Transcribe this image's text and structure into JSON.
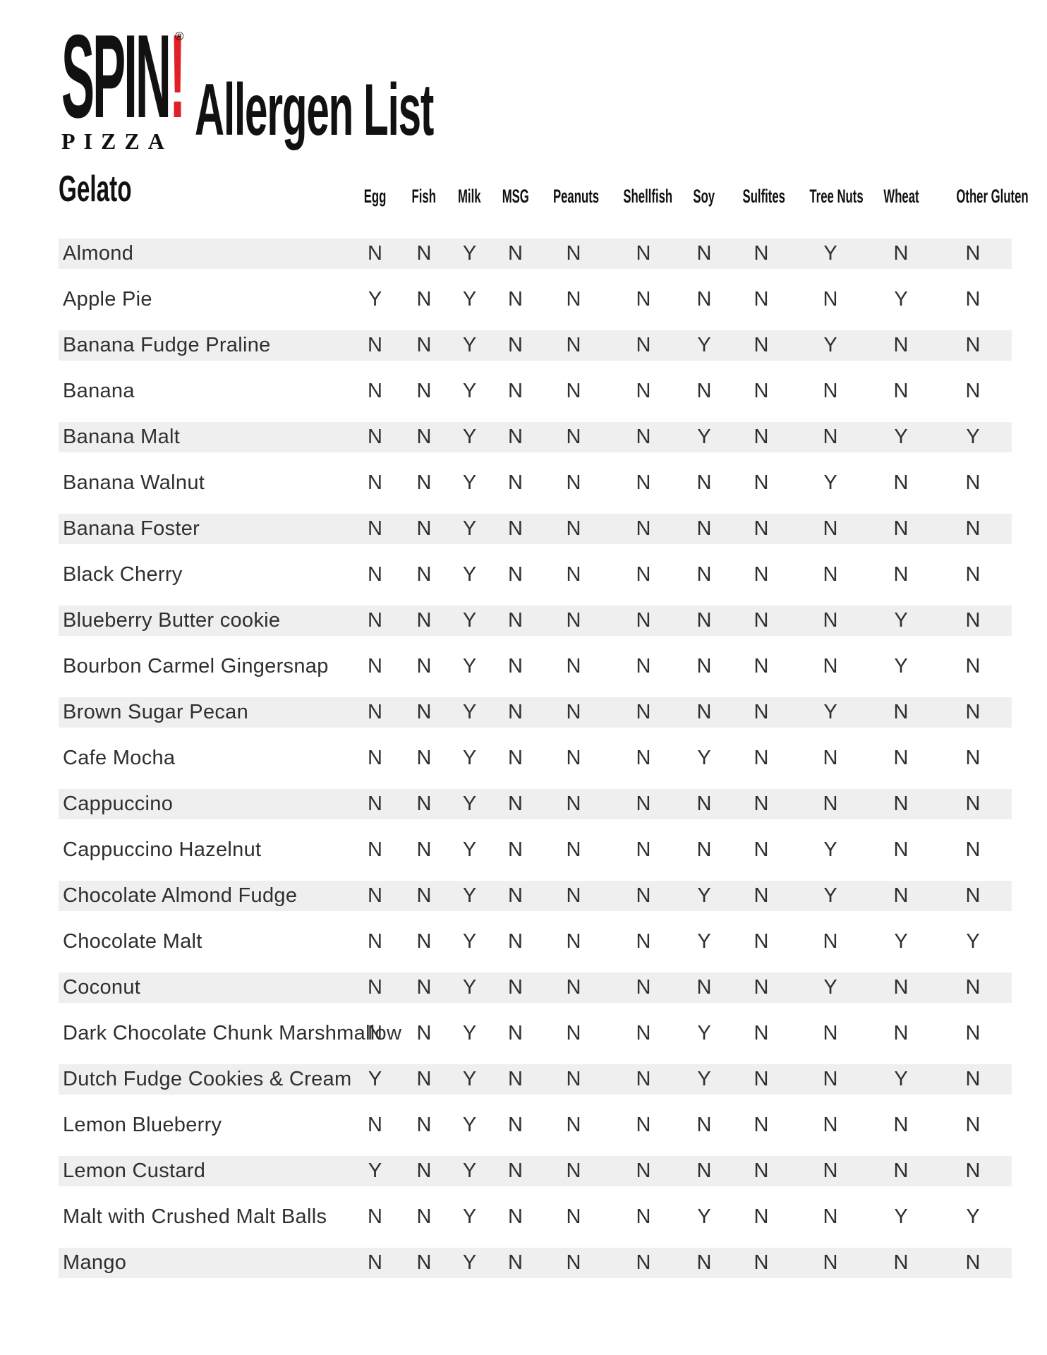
{
  "logo": {
    "brand": "SPIN",
    "exclamation": "!",
    "registered": "®",
    "sub_brand": "PIZZA"
  },
  "title": "Allergen List",
  "section": "Gelato",
  "colors": {
    "accent_red": "#e11f26",
    "row_stripe": "#efefef",
    "ink": "#111111",
    "body_text": "#2f2f2f"
  },
  "table": {
    "columns": [
      "Egg",
      "Fish",
      "Milk",
      "MSG",
      "Peanuts",
      "Shellfish",
      "Soy",
      "Sulfites",
      "Tree Nuts",
      "Wheat",
      "Other Gluten"
    ],
    "rows": [
      {
        "flavor": "Almond",
        "values": [
          "N",
          "N",
          "Y",
          "N",
          "N",
          "N",
          "N",
          "N",
          "Y",
          "N",
          "N"
        ]
      },
      {
        "flavor": "Apple Pie",
        "values": [
          "Y",
          "N",
          "Y",
          "N",
          "N",
          "N",
          "N",
          "N",
          "N",
          "Y",
          "N"
        ]
      },
      {
        "flavor": "Banana Fudge Praline",
        "values": [
          "N",
          "N",
          "Y",
          "N",
          "N",
          "N",
          "Y",
          "N",
          "Y",
          "N",
          "N"
        ]
      },
      {
        "flavor": "Banana",
        "values": [
          "N",
          "N",
          "Y",
          "N",
          "N",
          "N",
          "N",
          "N",
          "N",
          "N",
          "N"
        ]
      },
      {
        "flavor": "Banana Malt",
        "values": [
          "N",
          "N",
          "Y",
          "N",
          "N",
          "N",
          "Y",
          "N",
          "N",
          "Y",
          "Y"
        ]
      },
      {
        "flavor": "Banana Walnut",
        "values": [
          "N",
          "N",
          "Y",
          "N",
          "N",
          "N",
          "N",
          "N",
          "Y",
          "N",
          "N"
        ]
      },
      {
        "flavor": "Banana Foster",
        "values": [
          "N",
          "N",
          "Y",
          "N",
          "N",
          "N",
          "N",
          "N",
          "N",
          "N",
          "N"
        ]
      },
      {
        "flavor": "Black Cherry",
        "values": [
          "N",
          "N",
          "Y",
          "N",
          "N",
          "N",
          "N",
          "N",
          "N",
          "N",
          "N"
        ]
      },
      {
        "flavor": "Blueberry Butter cookie",
        "values": [
          "N",
          "N",
          "Y",
          "N",
          "N",
          "N",
          "N",
          "N",
          "N",
          "Y",
          "N"
        ]
      },
      {
        "flavor": "Bourbon Carmel Gingersnap",
        "values": [
          "N",
          "N",
          "Y",
          "N",
          "N",
          "N",
          "N",
          "N",
          "N",
          "Y",
          "N"
        ]
      },
      {
        "flavor": "Brown Sugar Pecan",
        "values": [
          "N",
          "N",
          "Y",
          "N",
          "N",
          "N",
          "N",
          "N",
          "Y",
          "N",
          "N"
        ]
      },
      {
        "flavor": "Cafe Mocha",
        "values": [
          "N",
          "N",
          "Y",
          "N",
          "N",
          "N",
          "Y",
          "N",
          "N",
          "N",
          "N"
        ]
      },
      {
        "flavor": "Cappuccino",
        "values": [
          "N",
          "N",
          "Y",
          "N",
          "N",
          "N",
          "N",
          "N",
          "N",
          "N",
          "N"
        ]
      },
      {
        "flavor": "Cappuccino Hazelnut",
        "values": [
          "N",
          "N",
          "Y",
          "N",
          "N",
          "N",
          "N",
          "N",
          "Y",
          "N",
          "N"
        ]
      },
      {
        "flavor": "Chocolate Almond Fudge",
        "values": [
          "N",
          "N",
          "Y",
          "N",
          "N",
          "N",
          "Y",
          "N",
          "Y",
          "N",
          "N"
        ]
      },
      {
        "flavor": "Chocolate Malt",
        "values": [
          "N",
          "N",
          "Y",
          "N",
          "N",
          "N",
          "Y",
          "N",
          "N",
          "Y",
          "Y"
        ]
      },
      {
        "flavor": "Coconut",
        "values": [
          "N",
          "N",
          "Y",
          "N",
          "N",
          "N",
          "N",
          "N",
          "Y",
          "N",
          "N"
        ]
      },
      {
        "flavor": "Dark Chocolate Chunk Marshmallow",
        "values": [
          "N",
          "N",
          "Y",
          "N",
          "N",
          "N",
          "Y",
          "N",
          "N",
          "N",
          "N"
        ]
      },
      {
        "flavor": "Dutch Fudge Cookies & Cream",
        "values": [
          "Y",
          "N",
          "Y",
          "N",
          "N",
          "N",
          "Y",
          "N",
          "N",
          "Y",
          "N"
        ]
      },
      {
        "flavor": "Lemon Blueberry",
        "values": [
          "N",
          "N",
          "Y",
          "N",
          "N",
          "N",
          "N",
          "N",
          "N",
          "N",
          "N"
        ]
      },
      {
        "flavor": "Lemon Custard",
        "values": [
          "Y",
          "N",
          "Y",
          "N",
          "N",
          "N",
          "N",
          "N",
          "N",
          "N",
          "N"
        ]
      },
      {
        "flavor": "Malt with Crushed Malt Balls",
        "values": [
          "N",
          "N",
          "Y",
          "N",
          "N",
          "N",
          "Y",
          "N",
          "N",
          "Y",
          "Y"
        ]
      },
      {
        "flavor": "Mango",
        "values": [
          "N",
          "N",
          "Y",
          "N",
          "N",
          "N",
          "N",
          "N",
          "N",
          "N",
          "N"
        ]
      }
    ]
  }
}
